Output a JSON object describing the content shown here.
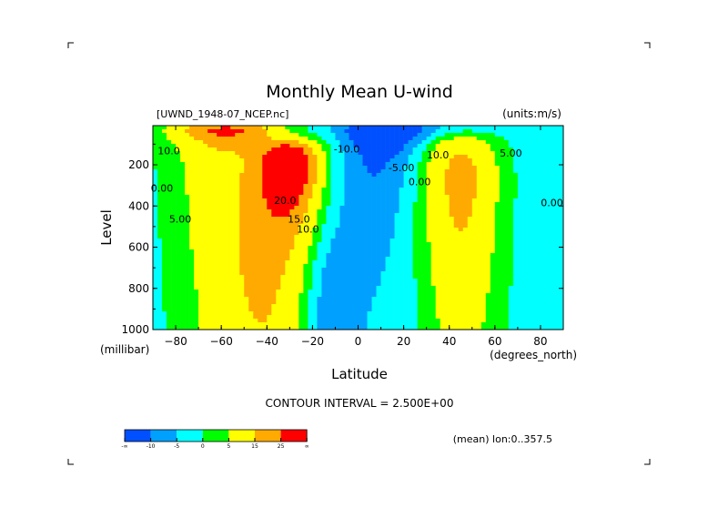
{
  "chart_data": {
    "type": "heatmap",
    "title": "Monthly Mean U-wind",
    "subtitle_left": "[UWND_1948-07_NCEP.nc]",
    "subtitle_right": "(units:m/s)",
    "xlabel": "Latitude",
    "xunits": "(degrees_north)",
    "ylabel": "Level",
    "yunits": "(millibar)",
    "xlim": [
      -90,
      90
    ],
    "ylim": [
      1000,
      10
    ],
    "xticks": [
      -80,
      -60,
      -40,
      -20,
      0,
      20,
      40,
      60,
      80
    ],
    "yticks": [
      200,
      400,
      600,
      800,
      1000
    ],
    "contour_interval_text": "CONTOUR INTERVAL = 2.500E+00",
    "footer_right": "(mean) lon:0..357.5",
    "colorbar": {
      "levels": [
        "-∞",
        "-10",
        "-5",
        "0",
        "5",
        "15",
        "25",
        "∞"
      ],
      "bounds": [
        -1000,
        -10,
        -5,
        0,
        5,
        15,
        25,
        1000
      ],
      "colors": [
        "#0050ff",
        "#00a0ff",
        "#00ffff",
        "#00ff00",
        "#ffff00",
        "#ffaa00",
        "#ff0000"
      ]
    },
    "field_model": {
      "baseline": -2,
      "components": [
        {
          "lat": -30,
          "level": 200,
          "amp": 40,
          "slat": 9,
          "slogp": 0.6
        },
        {
          "lat": -40,
          "level": 700,
          "amp": 14,
          "slat": 12,
          "slogp": 0.8
        },
        {
          "lat": -58,
          "level": 30,
          "amp": 30,
          "slat": 16,
          "slogp": 1.0
        },
        {
          "lat": -60,
          "level": 400,
          "amp": 10,
          "slat": 15,
          "slogp": 1.2
        },
        {
          "lat": 45,
          "level": 220,
          "amp": 18,
          "slat": 11,
          "slogp": 0.9
        },
        {
          "lat": 45,
          "level": 700,
          "amp": 6,
          "slat": 12,
          "slogp": 0.8
        },
        {
          "lat": 12,
          "level": 30,
          "amp": -24,
          "slat": 12,
          "slogp": 1.0
        },
        {
          "lat": 5,
          "level": 300,
          "amp": -6,
          "slat": 12,
          "slogp": 0.8
        },
        {
          "lat": -12,
          "level": 900,
          "amp": -7,
          "slat": 8,
          "slogp": 0.35
        }
      ]
    },
    "annotations": [
      {
        "text": "10.0",
        "lat": -83,
        "level": 150
      },
      {
        "text": "0.00",
        "lat": -86,
        "level": 330
      },
      {
        "text": "5.00",
        "lat": -78,
        "level": 480
      },
      {
        "text": "20.0",
        "lat": -32,
        "level": 390
      },
      {
        "text": "15.0",
        "lat": -26,
        "level": 480
      },
      {
        "text": "10.0",
        "lat": -22,
        "level": 530
      },
      {
        "text": "-10.0",
        "lat": -5,
        "level": 140
      },
      {
        "text": "-5.00",
        "lat": 19,
        "level": 230
      },
      {
        "text": "0.00",
        "lat": 27,
        "level": 300
      },
      {
        "text": "10.0",
        "lat": 35,
        "level": 170
      },
      {
        "text": "5.00",
        "lat": 67,
        "level": 160
      },
      {
        "text": "0.00",
        "lat": 85,
        "level": 400
      }
    ]
  }
}
